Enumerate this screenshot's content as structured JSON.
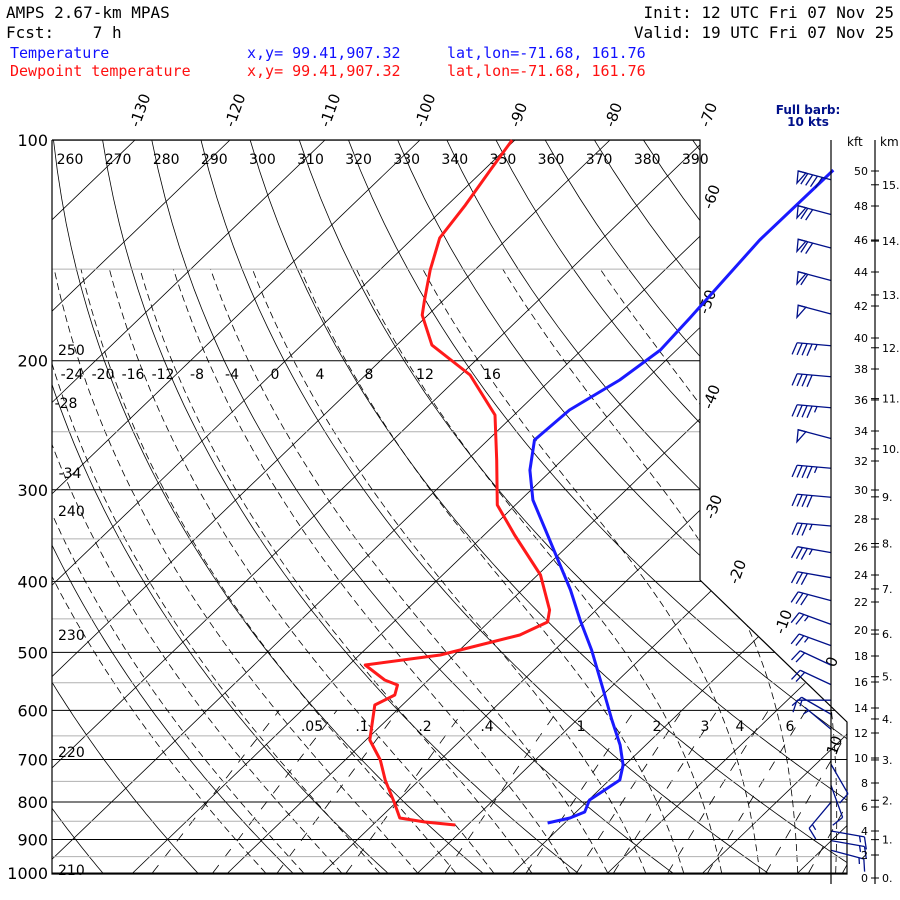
{
  "header": {
    "model": "AMPS 2.67-km MPAS",
    "fcst": "Fcst:    7 h",
    "init": "Init: 12 UTC Fri 07 Nov 25",
    "valid": "Valid: 19 UTC Fri 07 Nov 25",
    "temp_label": "Temperature",
    "dew_label": "Dewpoint temperature",
    "temp_xy": "x,y= 99.41,907.32",
    "dew_xy": "x,y= 99.41,907.32",
    "temp_latlon": "lat,lon=-71.68, 161.76",
    "dew_latlon": "lat,lon=-71.68, 161.76",
    "barb_legend_1": "Full barb:",
    "barb_legend_2": "10 kts",
    "kft_label": "kft",
    "km_label": "km"
  },
  "colors": {
    "temperature": "#1a1aff",
    "dewpoint": "#ff1a1a",
    "barbs": "#00108a",
    "grid": "#000000",
    "minor_grid": "#b0b0b0"
  },
  "chart_data": {
    "type": "line",
    "subtype": "skew-T log-P sounding",
    "pressure_ticks": [
      100,
      200,
      300,
      400,
      500,
      600,
      700,
      800,
      900,
      1000
    ],
    "minor_pressure_lines": [
      150,
      250,
      350,
      450,
      550,
      650,
      750,
      850,
      950
    ],
    "ylim_hPa": [
      1000,
      100
    ],
    "isotherm_top_labels": [
      "-130",
      "-120",
      "-110",
      "-100",
      "-90",
      "-80",
      "-70"
    ],
    "isotherm_inner_labels": [
      "-60",
      "-50",
      "-40",
      "-30",
      "-20",
      "-10",
      "0",
      "10"
    ],
    "theta_top_labels": [
      "260",
      "270",
      "280",
      "290",
      "300",
      "310",
      "320",
      "330",
      "340",
      "350",
      "360",
      "370",
      "380",
      "390"
    ],
    "theta_left_labels": [
      "250",
      "240",
      "230",
      "220",
      "210"
    ],
    "theta_w_labels": [
      "-24",
      "-20",
      "-16",
      "-12",
      "-8",
      "-4",
      "0",
      "4",
      "8",
      "12",
      "16"
    ],
    "theta_w_left_labels": [
      "-28",
      "-34"
    ],
    "mixing_ratio_labels": [
      ".05",
      ".1",
      ".2",
      ".4",
      "1",
      "2",
      "3",
      "4",
      "6"
    ],
    "series": [
      {
        "name": "Temperature",
        "color": "#1a1aff",
        "p": [
          109.9,
          136.9,
          174.9,
          193.4,
          212.5,
          233.5,
          256.6,
          282.0,
          309.8,
          340.4,
          374.0,
          411.0,
          451.6,
          496.3,
          562.7,
          618.4,
          668.9,
          712.2,
          746.7,
          770.5,
          795.1,
          825.6,
          841.3,
          854.6
        ],
        "t": [
          -53.2,
          -53.3,
          -52.1,
          -51.7,
          -52.7,
          -54.7,
          -55.1,
          -52.3,
          -48.7,
          -44.1,
          -39.5,
          -34.9,
          -30.6,
          -26.1,
          -20.5,
          -16.3,
          -12.7,
          -10.2,
          -8.9,
          -9.4,
          -9.9,
          -9.1,
          -10.0,
          -11.8
        ]
      },
      {
        "name": "Dewpoint temperature",
        "color": "#ff1a1a",
        "p": [
          100,
          109.9,
          122.6,
          136.0,
          150.4,
          165.3,
          173.3,
          190.4,
          209.2,
          237.2,
          273.2,
          314.7,
          345.8,
          392.1,
          437.7,
          454.5,
          473.5,
          504.1,
          520.2,
          545.3,
          554.0,
          571.6,
          589.9,
          658.5,
          701.2,
          746.7,
          802.6,
          841.3,
          851.9,
          860.0
        ],
        "t": [
          -90.3,
          -89.3,
          -88.1,
          -87.2,
          -84.7,
          -82.0,
          -80.6,
          -76.3,
          -69.0,
          -62.0,
          -56.9,
          -51.9,
          -46.8,
          -39.7,
          -34.9,
          -33.8,
          -35.3,
          -41.5,
          -48.3,
          -44.6,
          -42.7,
          -41.9,
          -42.9,
          -39.6,
          -36.3,
          -33.6,
          -30.1,
          -27.9,
          -24.8,
          -21.3
        ]
      }
    ],
    "kft_ticks": [
      "0",
      "2",
      "4",
      "6",
      "8",
      "10",
      "12",
      "14",
      "16",
      "18",
      "20",
      "22",
      "24",
      "26",
      "28",
      "30",
      "32",
      "34",
      "36",
      "38",
      "40",
      "42",
      "44",
      "46",
      "48",
      "50"
    ],
    "km_ticks": [
      "0.",
      "1.",
      "2.",
      "3.",
      "4.",
      "5.",
      "6.",
      "7.",
      "8.",
      "9.",
      "10.",
      "11.",
      "12.",
      "13.",
      "14.",
      "15."
    ],
    "wind_barbs": [
      {
        "kft": 49.5,
        "dir": 285,
        "kt": 90
      },
      {
        "kft": 47.5,
        "dir": 285,
        "kt": 70
      },
      {
        "kft": 45.5,
        "dir": 285,
        "kt": 70
      },
      {
        "kft": 43.5,
        "dir": 285,
        "kt": 60
      },
      {
        "kft": 41.5,
        "dir": 285,
        "kt": 50
      },
      {
        "kft": 39.5,
        "dir": 275,
        "kt": 45
      },
      {
        "kft": 37.5,
        "dir": 275,
        "kt": 40
      },
      {
        "kft": 35.5,
        "dir": 275,
        "kt": 45
      },
      {
        "kft": 33.5,
        "dir": 285,
        "kt": 50
      },
      {
        "kft": 31.5,
        "dir": 275,
        "kt": 45
      },
      {
        "kft": 29.5,
        "dir": 275,
        "kt": 40
      },
      {
        "kft": 27.5,
        "dir": 275,
        "kt": 35
      },
      {
        "kft": 25.6,
        "dir": 280,
        "kt": 35
      },
      {
        "kft": 23.8,
        "dir": 280,
        "kt": 30
      },
      {
        "kft": 22.1,
        "dir": 285,
        "kt": 30
      },
      {
        "kft": 20.4,
        "dir": 290,
        "kt": 25
      },
      {
        "kft": 18.8,
        "dir": 290,
        "kt": 25
      },
      {
        "kft": 17.3,
        "dir": 295,
        "kt": 20
      },
      {
        "kft": 15.8,
        "dir": 295,
        "kt": 20
      },
      {
        "kft": 14.6,
        "dir": 270,
        "kt": 15
      },
      {
        "kft": 13.5,
        "dir": 300,
        "kt": 10
      },
      {
        "kft": 12.3,
        "dir": 310,
        "kt": 5
      },
      {
        "kft": 9.5,
        "dir": 150,
        "kt": 10
      },
      {
        "kft": 7.8,
        "dir": 160,
        "kt": 10
      },
      {
        "kft": 6.4,
        "dir": 220,
        "kt": 15
      },
      {
        "kft": 4.0,
        "dir": 100,
        "kt": 15
      },
      {
        "kft": 3.2,
        "dir": 100,
        "kt": 15
      },
      {
        "kft": 2.4,
        "dir": 105,
        "kt": 15
      }
    ]
  }
}
